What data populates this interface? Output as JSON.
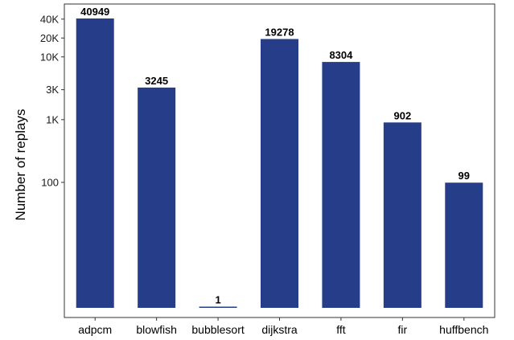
{
  "chart_data": {
    "type": "bar",
    "title": "",
    "xlabel": "",
    "ylabel": "Number of replays",
    "y_scale": "log",
    "ylim": [
      1,
      40949
    ],
    "grid": false,
    "bar_color": "#263e8a",
    "categories": [
      "adpcm",
      "blowfish",
      "bubblesort",
      "dijkstra",
      "fft",
      "fir",
      "huffbench"
    ],
    "values": [
      40949,
      3245,
      1,
      19278,
      8304,
      902,
      99
    ],
    "data_labels": [
      "40949",
      "3245",
      "1",
      "19278",
      "8304",
      "902",
      "99"
    ],
    "y_ticks": [
      {
        "value": 100,
        "label": "100"
      },
      {
        "value": 1000,
        "label": "1K"
      },
      {
        "value": 3000,
        "label": "3K"
      },
      {
        "value": 10000,
        "label": "10K"
      },
      {
        "value": 20000,
        "label": "20K"
      },
      {
        "value": 40000,
        "label": "40K"
      }
    ]
  }
}
